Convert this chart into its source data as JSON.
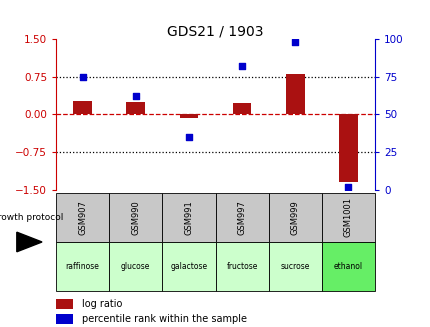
{
  "title": "GDS21 / 1903",
  "samples": [
    "GSM907",
    "GSM990",
    "GSM991",
    "GSM997",
    "GSM999",
    "GSM1001"
  ],
  "protocols": [
    "raffinose",
    "glucose",
    "galactose",
    "fructose",
    "sucrose",
    "ethanol"
  ],
  "log_ratio": [
    0.27,
    0.25,
    -0.08,
    0.22,
    0.8,
    -1.35
  ],
  "percentile_rank": [
    75,
    62,
    35,
    82,
    98,
    2
  ],
  "bar_color": "#aa1111",
  "dot_color": "#0000cc",
  "ylim_left": [
    -1.5,
    1.5
  ],
  "ylim_right": [
    0,
    100
  ],
  "yticks_left": [
    -1.5,
    -0.75,
    0,
    0.75,
    1.5
  ],
  "yticks_right": [
    0,
    25,
    50,
    75,
    100
  ],
  "protocol_colors": [
    "#ccffcc",
    "#ccffcc",
    "#ccffcc",
    "#ccffcc",
    "#ccffcc",
    "#66ee66"
  ],
  "growth_protocol_label": "growth protocol",
  "legend_log_ratio": "log ratio",
  "legend_percentile": "percentile rank within the sample",
  "title_fontsize": 10,
  "axis_label_color_left": "#cc0000",
  "axis_label_color_right": "#0000cc",
  "bar_width": 0.35,
  "sample_box_color": "#c8c8c8",
  "bg_color": "#ffffff"
}
